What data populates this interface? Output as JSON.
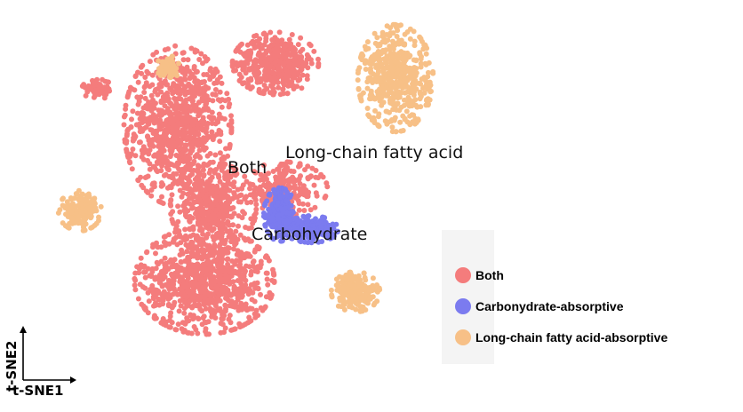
{
  "chart_data": {
    "type": "scatter",
    "title": "",
    "xlabel": "t-SNE1",
    "ylabel": "t-SNE2",
    "axis_ranges": {
      "x": [
        -50,
        50
      ],
      "y": [
        -50,
        50
      ]
    },
    "grid": false,
    "legend_placement": "right",
    "series": [
      {
        "name": "Both",
        "color": "#f47c7c"
      },
      {
        "name": "Carbonydrate-absorptive",
        "color": "#7b7bef"
      },
      {
        "name": "Long-chain fatty acid-absorptive",
        "color": "#f7c087"
      }
    ],
    "annotations": [
      {
        "text": "Both",
        "x": -8,
        "y": 10
      },
      {
        "text": "Long-chain fatty acid",
        "x": 24,
        "y": 14
      },
      {
        "text": "Carbohydrate",
        "x": 8,
        "y": -11
      }
    ],
    "clusters": [
      {
        "series": "Both",
        "x": -18,
        "y": 17,
        "sx": 10,
        "sy": 18,
        "n": 900
      },
      {
        "series": "Both",
        "x": 4,
        "y": 34,
        "sx": 8,
        "sy": 7,
        "n": 450
      },
      {
        "series": "Both",
        "x": -12,
        "y": -25,
        "sx": 13,
        "sy": 12,
        "n": 900
      },
      {
        "series": "Both",
        "x": -10,
        "y": -5,
        "sx": 8,
        "sy": 10,
        "n": 420
      },
      {
        "series": "Both",
        "x": 6,
        "y": 0,
        "sx": 8,
        "sy": 6,
        "n": 220
      },
      {
        "series": "Both",
        "x": -36,
        "y": 27,
        "sx": 3,
        "sy": 2.2,
        "n": 70
      },
      {
        "series": "Carbonydrate-absorptive",
        "x": 5,
        "y": -7,
        "sx": 3,
        "sy": 6,
        "n": 200
      },
      {
        "series": "Carbonydrate-absorptive",
        "x": 12,
        "y": -11,
        "sx": 5,
        "sy": 3,
        "n": 220
      },
      {
        "series": "Long-chain fatty acid-absorptive",
        "x": 31,
        "y": 30,
        "sx": 7,
        "sy": 12,
        "n": 520
      },
      {
        "series": "Long-chain fatty acid-absorptive",
        "x": 22,
        "y": -28,
        "sx": 4.5,
        "sy": 4.5,
        "n": 200
      },
      {
        "series": "Long-chain fatty acid-absorptive",
        "x": -40,
        "y": -6,
        "sx": 4,
        "sy": 4.5,
        "n": 150
      },
      {
        "series": "Long-chain fatty acid-absorptive",
        "x": -20,
        "y": 33,
        "sx": 2.3,
        "sy": 2.5,
        "n": 50
      }
    ]
  }
}
